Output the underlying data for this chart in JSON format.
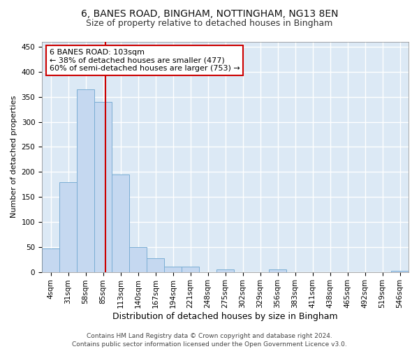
{
  "title_line1": "6, BANES ROAD, BINGHAM, NOTTINGHAM, NG13 8EN",
  "title_line2": "Size of property relative to detached houses in Bingham",
  "xlabel": "Distribution of detached houses by size in Bingham",
  "ylabel": "Number of detached properties",
  "bar_color": "#c5d8f0",
  "bar_edge_color": "#7aadd4",
  "categories": [
    "4sqm",
    "31sqm",
    "58sqm",
    "85sqm",
    "113sqm",
    "140sqm",
    "167sqm",
    "194sqm",
    "221sqm",
    "248sqm",
    "275sqm",
    "302sqm",
    "329sqm",
    "356sqm",
    "383sqm",
    "411sqm",
    "438sqm",
    "465sqm",
    "492sqm",
    "519sqm",
    "546sqm"
  ],
  "values": [
    47,
    180,
    365,
    340,
    195,
    50,
    27,
    10,
    10,
    0,
    5,
    0,
    0,
    5,
    0,
    0,
    0,
    0,
    0,
    0,
    2
  ],
  "ylim": [
    0,
    460
  ],
  "yticks": [
    0,
    50,
    100,
    150,
    200,
    250,
    300,
    350,
    400,
    450
  ],
  "vline_color": "#cc0000",
  "annotation_text": "6 BANES ROAD: 103sqm\n← 38% of detached houses are smaller (477)\n60% of semi-detached houses are larger (753) →",
  "annotation_box_color": "#ffffff",
  "annotation_box_edge": "#cc0000",
  "footer": "Contains HM Land Registry data © Crown copyright and database right 2024.\nContains public sector information licensed under the Open Government Licence v3.0.",
  "plot_bg_color": "#dce9f5",
  "fig_bg_color": "#ffffff",
  "grid_color": "#ffffff",
  "title1_fontsize": 10,
  "title2_fontsize": 9,
  "ylabel_fontsize": 8,
  "xlabel_fontsize": 9,
  "tick_fontsize": 7.5,
  "footer_fontsize": 6.5
}
